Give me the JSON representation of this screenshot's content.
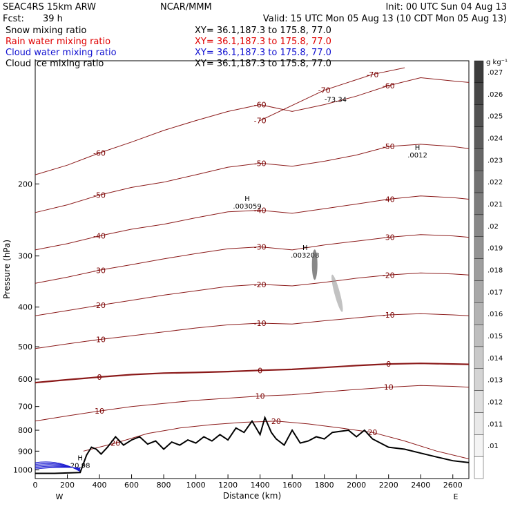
{
  "header": {
    "model": "SEAC4RS 15km ARW",
    "center": "NCAR/MMM",
    "init": "Init: 00 UTC Sun 04 Aug 13",
    "fcst_label": "Fcst:",
    "fcst_value": "39 h",
    "valid": "Valid: 15 UTC Mon 05 Aug 13 (10 CDT Mon 05 Aug 13)"
  },
  "legend": [
    {
      "name": "Snow mixing ratio",
      "color": "#000000",
      "xy": "XY=  36.1,187.3 to 175.8, 77.0"
    },
    {
      "name": "Rain water mixing ratio",
      "color": "#e00000",
      "xy": "XY=  36.1,187.3 to 175.8, 77.0"
    },
    {
      "name": "Cloud water mixing ratio",
      "color": "#1010d0",
      "xy": "XY=  36.1,187.3 to 175.8, 77.0"
    },
    {
      "name": "Cloud ice mixing ratio",
      "color": "#000000",
      "xy": "XY=  36.1,187.3 to 175.8, 77.0"
    }
  ],
  "colorbar": {
    "unit": "g kg⁻¹",
    "labels": [
      ".027",
      ".026",
      ".025",
      ".024",
      ".023",
      ".022",
      ".021",
      ".02",
      ".019",
      ".018",
      ".017",
      ".016",
      ".015",
      ".014",
      ".013",
      ".012",
      ".011",
      ".01"
    ]
  },
  "chart_data": {
    "type": "contour",
    "xlabel": "Distance (km)",
    "ylabel": "Pressure (hPa)",
    "x_ticks": [
      "0",
      "200",
      "400",
      "600",
      "800",
      "1000",
      "1200",
      "1400",
      "1600",
      "1800",
      "2000",
      "2200",
      "2400",
      "2600"
    ],
    "y_ticks": [
      "200",
      "300",
      "400",
      "500",
      "600",
      "700",
      "800",
      "900",
      "1000"
    ],
    "xlim": [
      0,
      2700
    ],
    "ylim": [
      1050,
      100
    ],
    "y_scale": "log",
    "direction_left": "W",
    "direction_right": "E",
    "temperature_contours_c": [
      {
        "level": -70,
        "x": [
          1400,
          1800,
          2100,
          2300
        ],
        "y": [
          140,
          118,
          108,
          104
        ]
      },
      {
        "level": -60,
        "x": [
          0,
          200,
          400,
          600,
          800,
          1000,
          1200,
          1400,
          1600,
          1800,
          2000,
          2200,
          2400,
          2600,
          2700
        ],
        "y": [
          190,
          180,
          168,
          158,
          148,
          140,
          133,
          128,
          133,
          128,
          122,
          115,
          110,
          112,
          113
        ]
      },
      {
        "level": -50,
        "x": [
          0,
          200,
          400,
          600,
          800,
          1000,
          1200,
          1400,
          1600,
          1800,
          2000,
          2200,
          2400,
          2600,
          2700
        ],
        "y": [
          235,
          225,
          213,
          204,
          198,
          190,
          182,
          178,
          181,
          176,
          170,
          162,
          160,
          162,
          164
        ]
      },
      {
        "level": -40,
        "x": [
          0,
          200,
          400,
          600,
          800,
          1000,
          1200,
          1400,
          1600,
          1800,
          2000,
          2200,
          2400,
          2600,
          2700
        ],
        "y": [
          290,
          280,
          268,
          258,
          251,
          242,
          234,
          232,
          236,
          230,
          224,
          218,
          214,
          216,
          218
        ]
      },
      {
        "level": -30,
        "x": [
          0,
          200,
          400,
          600,
          800,
          1000,
          1200,
          1400,
          1600,
          1800,
          2000,
          2200,
          2400,
          2600,
          2700
        ],
        "y": [
          350,
          338,
          325,
          315,
          305,
          296,
          288,
          285,
          290,
          282,
          276,
          270,
          266,
          268,
          270
        ]
      },
      {
        "level": -20,
        "x": [
          0,
          200,
          400,
          600,
          800,
          1000,
          1200,
          1400,
          1600,
          1800,
          2000,
          2200,
          2400,
          2600,
          2700
        ],
        "y": [
          420,
          408,
          396,
          385,
          374,
          365,
          356,
          352,
          355,
          348,
          340,
          334,
          330,
          332,
          334
        ]
      },
      {
        "level": -10,
        "x": [
          0,
          200,
          400,
          600,
          800,
          1000,
          1200,
          1400,
          1600,
          1800,
          2000,
          2200,
          2400,
          2600,
          2700
        ],
        "y": [
          505,
          492,
          480,
          470,
          460,
          450,
          442,
          438,
          440,
          432,
          425,
          418,
          415,
          418,
          420
        ]
      },
      {
        "level": 0,
        "x": [
          0,
          200,
          400,
          600,
          800,
          1000,
          1200,
          1400,
          1600,
          1800,
          2000,
          2200,
          2400,
          2600,
          2700
        ],
        "y": [
          612,
          602,
          593,
          585,
          580,
          578,
          575,
          571,
          568,
          562,
          556,
          551,
          549,
          551,
          552
        ]
      },
      {
        "level": 10,
        "x": [
          0,
          200,
          400,
          600,
          800,
          1000,
          1200,
          1400,
          1600,
          1800,
          2000,
          2200,
          2400,
          2600,
          2700
        ],
        "y": [
          760,
          738,
          718,
          700,
          688,
          676,
          668,
          660,
          655,
          645,
          636,
          628,
          622,
          625,
          628
        ]
      },
      {
        "level": 20,
        "x": [
          300,
          500,
          700,
          900,
          1100,
          1300,
          1500,
          1700,
          1900,
          2100,
          2300,
          2500,
          2700
        ],
        "y": [
          900,
          860,
          815,
          790,
          775,
          765,
          760,
          772,
          790,
          810,
          850,
          900,
          940
        ]
      }
    ],
    "terrain_pressure_hpa": {
      "x": [
        0,
        120,
        280,
        320,
        350,
        380,
        410,
        450,
        500,
        550,
        600,
        650,
        700,
        750,
        800,
        850,
        900,
        950,
        1000,
        1050,
        1100,
        1150,
        1200,
        1250,
        1300,
        1350,
        1400,
        1430,
        1470,
        1500,
        1550,
        1600,
        1650,
        1700,
        1750,
        1800,
        1850,
        1900,
        1950,
        2000,
        2050,
        2100,
        2200,
        2300,
        2400,
        2500,
        2600,
        2700
      ],
      "y": [
        1020,
        1020,
        1015,
        920,
        880,
        890,
        915,
        880,
        830,
        870,
        845,
        830,
        865,
        850,
        890,
        855,
        870,
        845,
        860,
        830,
        850,
        820,
        845,
        790,
        810,
        760,
        820,
        745,
        810,
        840,
        870,
        800,
        860,
        850,
        830,
        840,
        810,
        805,
        800,
        830,
        800,
        840,
        880,
        890,
        910,
        930,
        950,
        960
      ]
    },
    "extrema": [
      {
        "label": "H",
        "value": ".0012",
        "x": 2380,
        "y": 165
      },
      {
        "label": "H",
        "value": ".003059",
        "x": 1320,
        "y": 220
      },
      {
        "label": "H",
        "value": ".003208",
        "x": 1680,
        "y": 290
      },
      {
        "label": "H",
        "value": "20.98",
        "x": 280,
        "y": 948
      },
      {
        "label": "-73.34",
        "value": "",
        "x": 1870,
        "y": 126
      }
    ]
  }
}
